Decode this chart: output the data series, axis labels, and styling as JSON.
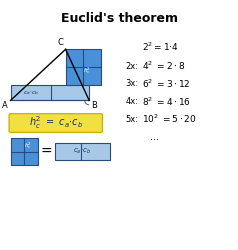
{
  "title": "Euclid's theorem",
  "title_fontsize": 9,
  "light_blue": "#a8c8e8",
  "mid_blue": "#4a90d9",
  "dark_blue": "#2060a0",
  "yellow_fill": "#f0e040",
  "yellow_edge": "#c8b000",
  "eq_first": "2^2 = 1 \\cdot 4",
  "equations": [
    {
      "prefix": "2x:",
      "base": "4",
      "rhs": "= 2 \\cdot 8"
    },
    {
      "prefix": "3x:",
      "base": "6",
      "rhs": "= 3 \\cdot 12"
    },
    {
      "prefix": "4x:",
      "base": "8",
      "rhs": "= 4 \\cdot 16"
    },
    {
      "prefix": "5x:",
      "base": "10",
      "rhs": "= 5 \\cdot 20"
    }
  ]
}
